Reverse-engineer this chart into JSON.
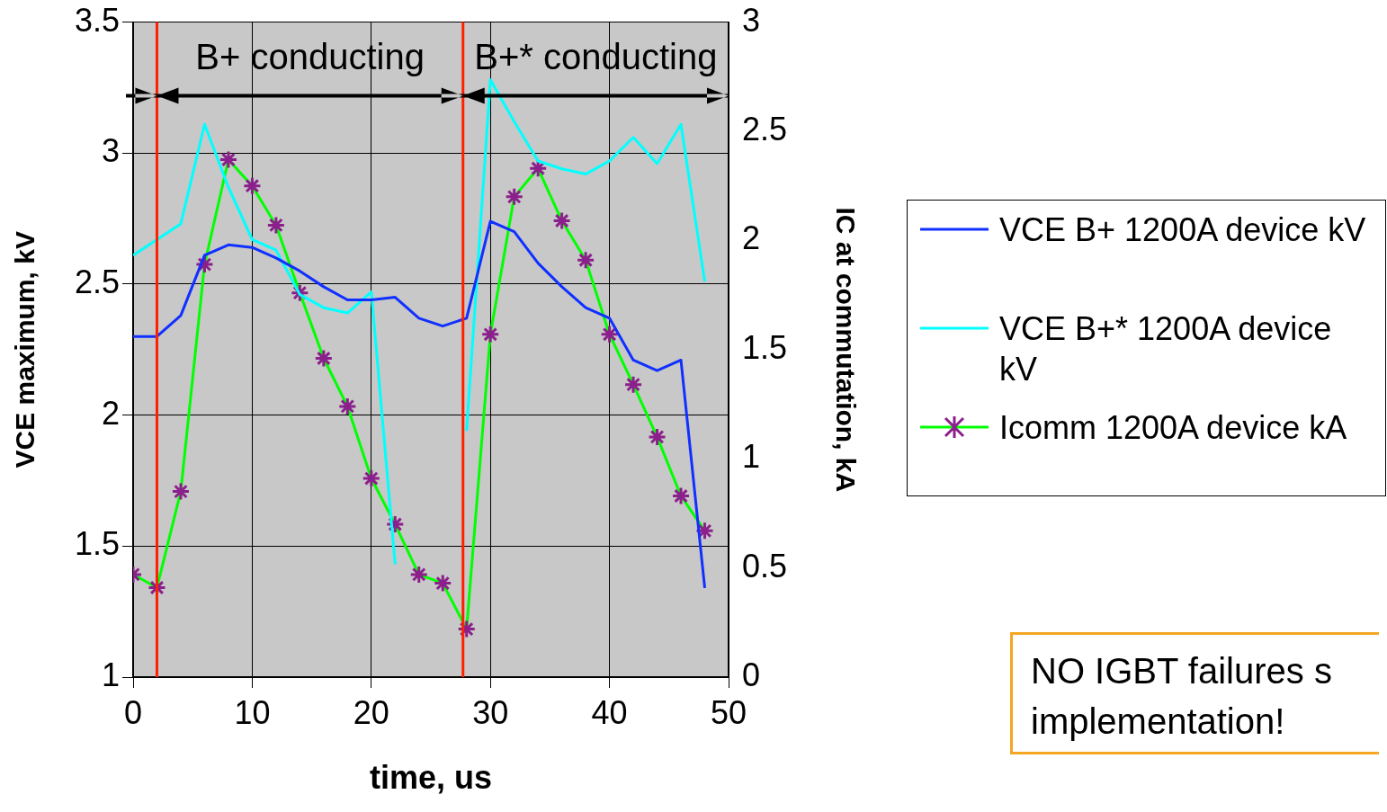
{
  "chart_data": {
    "type": "line",
    "xlabel": "time, us",
    "ylabel": "VCE maximum, kV",
    "y2label": "IC at commutation, kA",
    "x": [
      0,
      2,
      4,
      6,
      8,
      10,
      12,
      14,
      16,
      18,
      20,
      22,
      24,
      26,
      28,
      30,
      32,
      34,
      36,
      38,
      40,
      42,
      44,
      46,
      48
    ],
    "series": [
      {
        "name": "VCE B+ 1200A device kV",
        "color": "#1030ff",
        "marker": "none",
        "values": [
          2.3,
          2.3,
          2.38,
          2.61,
          2.65,
          2.64,
          2.6,
          2.55,
          2.49,
          2.44,
          2.44,
          2.45,
          2.37,
          2.34,
          2.37,
          2.74,
          2.7,
          2.58,
          2.49,
          2.41,
          2.37,
          2.21,
          2.17,
          2.21,
          1.34
        ]
      },
      {
        "name": "VCE B+* 1200A device kV",
        "color": "#00ffff",
        "marker": "none",
        "values": [
          2.61,
          2.67,
          2.73,
          3.11,
          2.87,
          2.67,
          2.63,
          2.46,
          2.41,
          2.39,
          2.47,
          1.43,
          null,
          null,
          1.94,
          3.28,
          3.12,
          2.97,
          2.94,
          2.92,
          2.97,
          3.06,
          2.96,
          3.11,
          2.51
        ]
      },
      {
        "name": "Icomm 1200A device kA",
        "color": "#00ff00",
        "marker": "cross",
        "axis": "y2",
        "values": [
          0.47,
          0.41,
          0.85,
          1.89,
          2.37,
          2.25,
          2.07,
          1.76,
          1.46,
          1.24,
          0.91,
          0.7,
          0.47,
          0.43,
          0.22,
          1.57,
          2.2,
          2.33,
          2.09,
          1.91,
          1.57,
          1.34,
          1.1,
          0.83,
          0.67
        ]
      }
    ],
    "xlim": [
      0,
      50
    ],
    "xticks": [
      0,
      10,
      20,
      30,
      40,
      50
    ],
    "ylim": [
      1,
      3.5
    ],
    "yticks": [
      1,
      1.5,
      2,
      2.5,
      3,
      3.5
    ],
    "y2lim": [
      0,
      3
    ],
    "y2ticks": [
      0,
      0.5,
      1,
      1.5,
      2,
      2.5,
      3
    ],
    "grid": true,
    "legend": "right",
    "ref_lines": [
      {
        "axis": "x",
        "value": 2,
        "color": "#ff2000"
      },
      {
        "axis": "x",
        "value": 27.7,
        "color": "#ff2000"
      }
    ],
    "annotations": [
      "B+ conducting",
      "B+* conducting",
      "NO IGBT failures s implementation!"
    ]
  }
}
